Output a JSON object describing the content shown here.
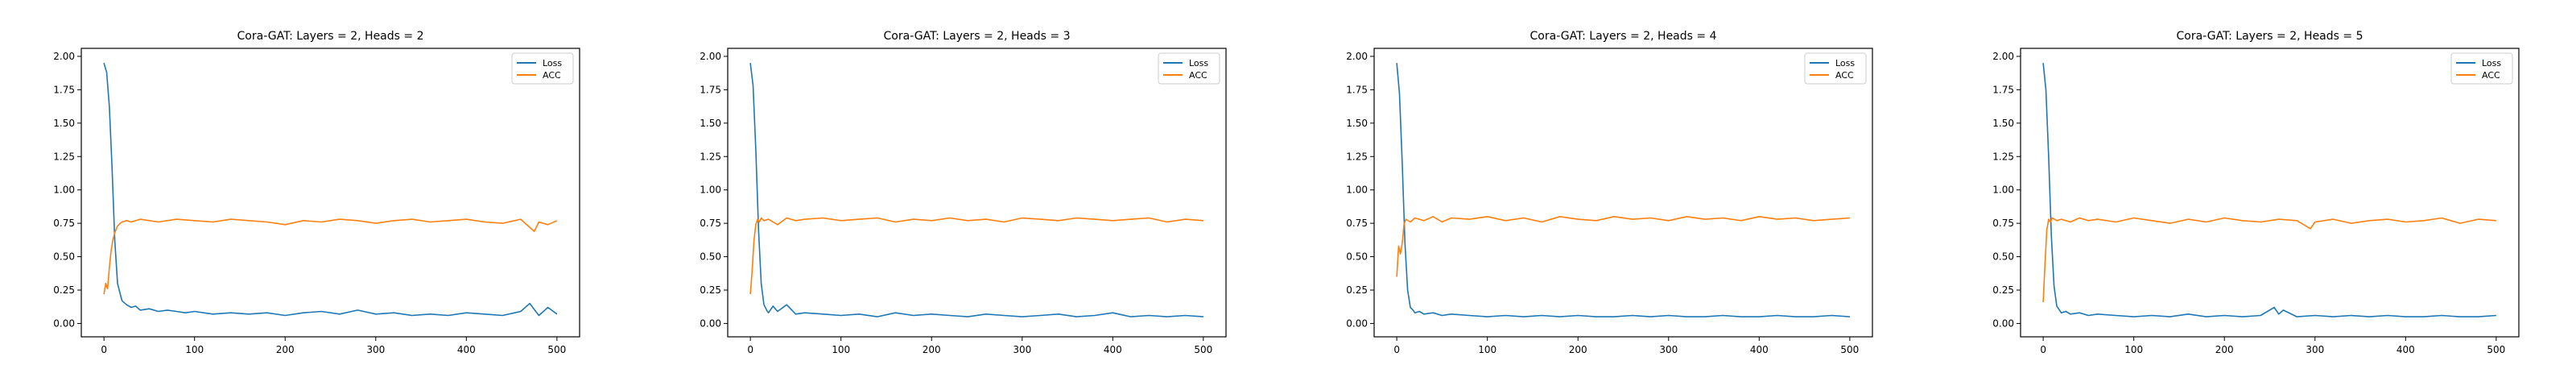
{
  "chart_data": [
    {
      "type": "line",
      "title": "Cora-GAT: Layers = 2, Heads = 2",
      "xlabel": "",
      "ylabel": "",
      "xlim": [
        -25,
        525
      ],
      "ylim": [
        -0.1,
        2.06
      ],
      "xticks": [
        0,
        100,
        200,
        300,
        400,
        500
      ],
      "yticks": [
        0.0,
        0.25,
        0.5,
        0.75,
        1.0,
        1.25,
        1.5,
        1.75,
        2.0
      ],
      "ytick_labels": [
        "0.00",
        "0.25",
        "0.50",
        "0.75",
        "1.00",
        "1.25",
        "1.50",
        "1.75",
        "2.00"
      ],
      "legend": "top-right",
      "grid": false,
      "series": [
        {
          "name": "Loss",
          "color": "#1f77b4",
          "x": [
            0,
            3,
            6,
            9,
            12,
            15,
            18,
            20,
            25,
            30,
            35,
            40,
            50,
            60,
            70,
            80,
            90,
            100,
            120,
            140,
            160,
            180,
            200,
            220,
            240,
            260,
            280,
            300,
            320,
            340,
            360,
            380,
            400,
            420,
            440,
            460,
            470,
            480,
            490,
            500
          ],
          "y": [
            1.95,
            1.88,
            1.62,
            1.15,
            0.62,
            0.3,
            0.22,
            0.17,
            0.14,
            0.12,
            0.13,
            0.1,
            0.11,
            0.09,
            0.1,
            0.09,
            0.08,
            0.09,
            0.07,
            0.08,
            0.07,
            0.08,
            0.06,
            0.08,
            0.09,
            0.07,
            0.1,
            0.07,
            0.08,
            0.06,
            0.07,
            0.06,
            0.08,
            0.07,
            0.06,
            0.09,
            0.15,
            0.06,
            0.12,
            0.07
          ]
        },
        {
          "name": "ACC",
          "color": "#ff7f0e",
          "x": [
            0,
            2,
            4,
            6,
            8,
            10,
            12,
            15,
            18,
            20,
            25,
            30,
            40,
            50,
            60,
            80,
            100,
            120,
            140,
            160,
            180,
            200,
            220,
            240,
            260,
            280,
            300,
            320,
            340,
            360,
            380,
            400,
            420,
            440,
            460,
            475,
            480,
            490,
            500
          ],
          "y": [
            0.22,
            0.3,
            0.26,
            0.42,
            0.55,
            0.63,
            0.68,
            0.73,
            0.75,
            0.76,
            0.77,
            0.76,
            0.78,
            0.77,
            0.76,
            0.78,
            0.77,
            0.76,
            0.78,
            0.77,
            0.76,
            0.74,
            0.77,
            0.76,
            0.78,
            0.77,
            0.75,
            0.77,
            0.78,
            0.76,
            0.77,
            0.78,
            0.76,
            0.75,
            0.78,
            0.69,
            0.76,
            0.74,
            0.77
          ]
        }
      ]
    },
    {
      "type": "line",
      "title": "Cora-GAT: Layers = 2, Heads = 3",
      "xlabel": "",
      "ylabel": "",
      "xlim": [
        -25,
        525
      ],
      "ylim": [
        -0.1,
        2.06
      ],
      "xticks": [
        0,
        100,
        200,
        300,
        400,
        500
      ],
      "yticks": [
        0.0,
        0.25,
        0.5,
        0.75,
        1.0,
        1.25,
        1.5,
        1.75,
        2.0
      ],
      "ytick_labels": [
        "0.00",
        "0.25",
        "0.50",
        "0.75",
        "1.00",
        "1.25",
        "1.50",
        "1.75",
        "2.00"
      ],
      "legend": "top-right",
      "grid": false,
      "series": [
        {
          "name": "Loss",
          "color": "#1f77b4",
          "x": [
            0,
            3,
            6,
            9,
            12,
            15,
            18,
            20,
            25,
            30,
            40,
            50,
            60,
            80,
            100,
            120,
            140,
            160,
            180,
            200,
            220,
            240,
            260,
            280,
            300,
            320,
            340,
            360,
            380,
            400,
            420,
            440,
            460,
            480,
            500
          ],
          "y": [
            1.95,
            1.78,
            1.3,
            0.7,
            0.3,
            0.14,
            0.1,
            0.08,
            0.13,
            0.09,
            0.14,
            0.07,
            0.08,
            0.07,
            0.06,
            0.07,
            0.05,
            0.08,
            0.06,
            0.07,
            0.06,
            0.05,
            0.07,
            0.06,
            0.05,
            0.06,
            0.07,
            0.05,
            0.06,
            0.08,
            0.05,
            0.06,
            0.05,
            0.06,
            0.05
          ]
        },
        {
          "name": "ACC",
          "color": "#ff7f0e",
          "x": [
            0,
            2,
            4,
            6,
            8,
            10,
            12,
            15,
            20,
            30,
            40,
            50,
            60,
            80,
            100,
            120,
            140,
            160,
            180,
            200,
            220,
            240,
            260,
            280,
            300,
            320,
            340,
            360,
            380,
            400,
            420,
            440,
            460,
            480,
            500
          ],
          "y": [
            0.22,
            0.4,
            0.62,
            0.74,
            0.78,
            0.76,
            0.79,
            0.77,
            0.78,
            0.74,
            0.79,
            0.77,
            0.78,
            0.79,
            0.77,
            0.78,
            0.79,
            0.76,
            0.78,
            0.77,
            0.79,
            0.77,
            0.78,
            0.76,
            0.79,
            0.78,
            0.77,
            0.79,
            0.78,
            0.77,
            0.78,
            0.79,
            0.76,
            0.78,
            0.77
          ]
        }
      ]
    },
    {
      "type": "line",
      "title": "Cora-GAT: Layers = 2, Heads = 4",
      "xlabel": "",
      "ylabel": "",
      "xlim": [
        -25,
        525
      ],
      "ylim": [
        -0.1,
        2.06
      ],
      "xticks": [
        0,
        100,
        200,
        300,
        400,
        500
      ],
      "yticks": [
        0.0,
        0.25,
        0.5,
        0.75,
        1.0,
        1.25,
        1.5,
        1.75,
        2.0
      ],
      "ytick_labels": [
        "0.00",
        "0.25",
        "0.50",
        "0.75",
        "1.00",
        "1.25",
        "1.50",
        "1.75",
        "2.00"
      ],
      "legend": "top-right",
      "grid": false,
      "series": [
        {
          "name": "Loss",
          "color": "#1f77b4",
          "x": [
            0,
            3,
            6,
            9,
            12,
            15,
            18,
            20,
            25,
            30,
            40,
            50,
            60,
            80,
            100,
            120,
            140,
            160,
            180,
            200,
            220,
            240,
            260,
            280,
            300,
            320,
            340,
            360,
            380,
            400,
            420,
            440,
            460,
            480,
            500
          ],
          "y": [
            1.95,
            1.72,
            1.2,
            0.6,
            0.25,
            0.12,
            0.1,
            0.08,
            0.09,
            0.07,
            0.08,
            0.06,
            0.07,
            0.06,
            0.05,
            0.06,
            0.05,
            0.06,
            0.05,
            0.06,
            0.05,
            0.05,
            0.06,
            0.05,
            0.06,
            0.05,
            0.05,
            0.06,
            0.05,
            0.05,
            0.06,
            0.05,
            0.05,
            0.06,
            0.05
          ]
        },
        {
          "name": "ACC",
          "color": "#ff7f0e",
          "x": [
            0,
            2,
            4,
            6,
            8,
            10,
            15,
            20,
            30,
            40,
            50,
            60,
            80,
            100,
            120,
            140,
            160,
            180,
            200,
            220,
            240,
            260,
            280,
            300,
            320,
            340,
            360,
            380,
            400,
            420,
            440,
            460,
            480,
            500
          ],
          "y": [
            0.35,
            0.58,
            0.52,
            0.6,
            0.74,
            0.78,
            0.76,
            0.79,
            0.77,
            0.8,
            0.76,
            0.79,
            0.78,
            0.8,
            0.77,
            0.79,
            0.76,
            0.8,
            0.78,
            0.77,
            0.8,
            0.78,
            0.79,
            0.77,
            0.8,
            0.78,
            0.79,
            0.77,
            0.8,
            0.78,
            0.79,
            0.77,
            0.78,
            0.79
          ]
        }
      ]
    },
    {
      "type": "line",
      "title": "Cora-GAT: Layers = 2, Heads = 5",
      "xlabel": "",
      "ylabel": "",
      "xlim": [
        -25,
        525
      ],
      "ylim": [
        -0.1,
        2.06
      ],
      "xticks": [
        0,
        100,
        200,
        300,
        400,
        500
      ],
      "yticks": [
        0.0,
        0.25,
        0.5,
        0.75,
        1.0,
        1.25,
        1.5,
        1.75,
        2.0
      ],
      "ytick_labels": [
        "0.00",
        "0.25",
        "0.50",
        "0.75",
        "1.00",
        "1.25",
        "1.50",
        "1.75",
        "2.00"
      ],
      "legend": "top-right",
      "grid": false,
      "series": [
        {
          "name": "Loss",
          "color": "#1f77b4",
          "x": [
            0,
            3,
            6,
            9,
            12,
            15,
            18,
            20,
            25,
            30,
            40,
            50,
            60,
            80,
            100,
            120,
            140,
            160,
            180,
            200,
            220,
            240,
            255,
            260,
            265,
            280,
            300,
            320,
            340,
            360,
            380,
            400,
            420,
            440,
            460,
            480,
            500
          ],
          "y": [
            1.95,
            1.75,
            1.25,
            0.65,
            0.28,
            0.13,
            0.1,
            0.08,
            0.09,
            0.07,
            0.08,
            0.06,
            0.07,
            0.06,
            0.05,
            0.06,
            0.05,
            0.07,
            0.05,
            0.06,
            0.05,
            0.06,
            0.12,
            0.07,
            0.1,
            0.05,
            0.06,
            0.05,
            0.06,
            0.05,
            0.06,
            0.05,
            0.05,
            0.06,
            0.05,
            0.05,
            0.06
          ]
        },
        {
          "name": "ACC",
          "color": "#ff7f0e",
          "x": [
            0,
            2,
            4,
            6,
            8,
            10,
            15,
            20,
            30,
            40,
            50,
            60,
            80,
            100,
            120,
            140,
            160,
            180,
            200,
            220,
            240,
            260,
            280,
            295,
            300,
            320,
            340,
            360,
            380,
            400,
            420,
            440,
            460,
            480,
            500
          ],
          "y": [
            0.16,
            0.45,
            0.7,
            0.78,
            0.76,
            0.79,
            0.77,
            0.78,
            0.76,
            0.79,
            0.77,
            0.78,
            0.76,
            0.79,
            0.77,
            0.75,
            0.78,
            0.76,
            0.79,
            0.77,
            0.76,
            0.78,
            0.77,
            0.71,
            0.76,
            0.78,
            0.75,
            0.77,
            0.78,
            0.76,
            0.77,
            0.79,
            0.75,
            0.78,
            0.77
          ]
        }
      ]
    }
  ]
}
